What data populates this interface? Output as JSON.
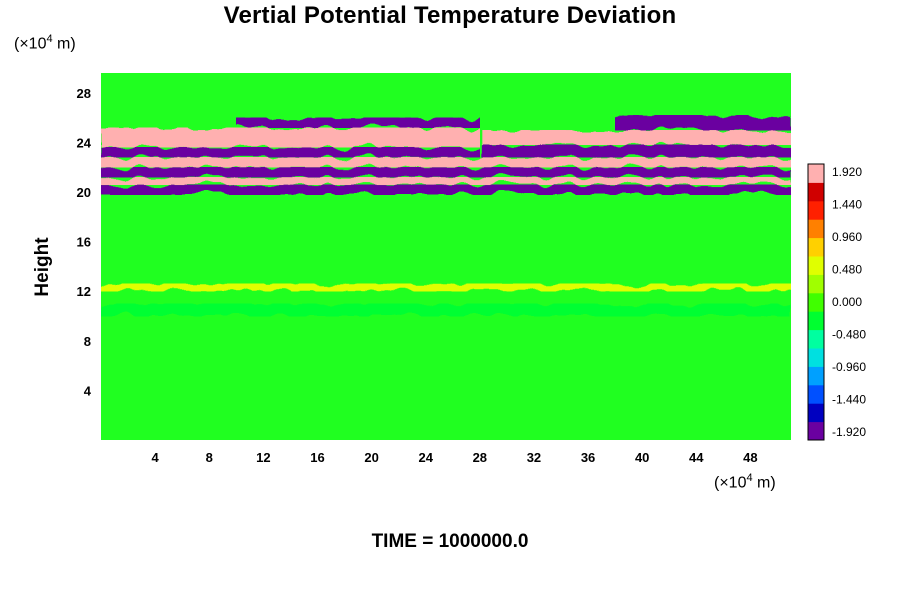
{
  "chart_data": {
    "type": "heatmap",
    "title": "Vertial Potential Temperature Deviation",
    "ylabel": "Height",
    "xlabel": "",
    "x_unit": {
      "prefix": "(×10",
      "exp": "4",
      "suffix": " m)"
    },
    "y_unit": {
      "prefix": "(×10",
      "exp": "4",
      "suffix": " m)"
    },
    "footer": "TIME = 1000000.0",
    "xlim": [
      0,
      51
    ],
    "ylim": [
      0,
      29.6
    ],
    "x_ticks": [
      4,
      8,
      12,
      16,
      20,
      24,
      28,
      32,
      36,
      40,
      44,
      48
    ],
    "y_ticks": [
      4,
      8,
      12,
      16,
      20,
      24,
      28
    ],
    "colorbar": {
      "range": [
        -2.04,
        2.04
      ],
      "tick_labels": [
        "1.920",
        "1.440",
        "0.960",
        "0.480",
        "0.000",
        "-0.480",
        "-0.960",
        "-1.440",
        "-1.920"
      ],
      "colors": [
        "#6a00a0",
        "#0000c0",
        "#0050ff",
        "#00a0ff",
        "#00e0e0",
        "#00ffa0",
        "#00ff30",
        "#40ff00",
        "#a0ff00",
        "#e0ff00",
        "#ffd000",
        "#ff8000",
        "#ff2000",
        "#d00000",
        "#ffb0b0"
      ]
    },
    "field_regions": [
      {
        "x0": 0,
        "x1": 51,
        "y0": 19.8,
        "y1": 20.6,
        "value": -2.0
      },
      {
        "x0": 0,
        "x1": 51,
        "y0": 20.6,
        "y1": 21.2,
        "value": 2.0
      },
      {
        "x0": 0,
        "x1": 51,
        "y0": 21.2,
        "y1": 22.0,
        "value": -2.0
      },
      {
        "x0": 0,
        "x1": 51,
        "y0": 22.0,
        "y1": 22.8,
        "value": 2.0
      },
      {
        "x0": 0,
        "x1": 28,
        "y0": 22.8,
        "y1": 23.6,
        "value": -2.0
      },
      {
        "x0": 28,
        "x1": 51,
        "y0": 22.8,
        "y1": 23.8,
        "value": -2.0
      },
      {
        "x0": 0,
        "x1": 28,
        "y0": 23.6,
        "y1": 25.2,
        "value": 2.0
      },
      {
        "x0": 28,
        "x1": 51,
        "y0": 23.8,
        "y1": 25.0,
        "value": 2.0
      },
      {
        "x0": 38,
        "x1": 51,
        "y0": 25.0,
        "y1": 26.2,
        "value": -2.0
      },
      {
        "x0": 10,
        "x1": 28,
        "y0": 25.2,
        "y1": 26.0,
        "value": -2.0
      },
      {
        "x0": 0,
        "x1": 51,
        "y0": 12.0,
        "y1": 12.6,
        "value": 0.5
      },
      {
        "x0": 0,
        "x1": 51,
        "y0": 10.0,
        "y1": 11.0,
        "value": -0.4
      }
    ]
  }
}
